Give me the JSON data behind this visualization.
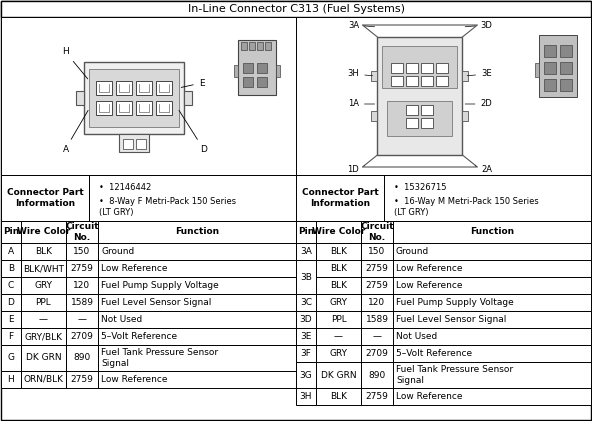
{
  "title": "In-Line Connector C313 (Fuel Systems)",
  "bg_color": "#ffffff",
  "connector_info_left": {
    "label": "Connector Part\nInformation",
    "details": [
      "12146442",
      "8-Way F Metri-Pack 150 Series\n(LT GRY)"
    ]
  },
  "connector_info_right": {
    "label": "Connector Part\nInformation",
    "details": [
      "15326715",
      "16-Way M Metri-Pack 150 Series\n(LT GRY)"
    ]
  },
  "left_table_headers": [
    "Pin",
    "Wire Color",
    "Circuit\nNo.",
    "Function"
  ],
  "right_table_headers": [
    "Pin",
    "Wire Color",
    "Circuit\nNo.",
    "Function"
  ],
  "left_rows": [
    [
      "A",
      "BLK",
      "150",
      "Ground"
    ],
    [
      "B",
      "BLK/WHT",
      "2759",
      "Low Reference"
    ],
    [
      "C",
      "GRY",
      "120",
      "Fuel Pump Supply Voltage"
    ],
    [
      "D",
      "PPL",
      "1589",
      "Fuel Level Sensor Signal"
    ],
    [
      "E",
      "—",
      "—",
      "Not Used"
    ],
    [
      "F",
      "GRY/BLK",
      "2709",
      "5–Volt Reference"
    ],
    [
      "G",
      "DK GRN",
      "890",
      "Fuel Tank Pressure Sensor\nSignal"
    ],
    [
      "H",
      "ORN/BLK",
      "2759",
      "Low Reference"
    ]
  ],
  "right_rows_3b": [
    "BLK",
    "2759",
    "Low Reference"
  ],
  "right_rows": [
    [
      "3A",
      "BLK",
      "150",
      "Ground"
    ],
    [
      "3B",
      "BLK",
      "2759",
      "Low Reference",
      "BLK",
      "2759",
      "Low Reference"
    ],
    [
      "3C",
      "GRY",
      "120",
      "Fuel Pump Supply Voltage"
    ],
    [
      "3D",
      "PPL",
      "1589",
      "Fuel Level Sensor Signal"
    ],
    [
      "3E",
      "—",
      "—",
      "Not Used"
    ],
    [
      "3F",
      "GRY",
      "2709",
      "5–Volt Reference"
    ],
    [
      "3G",
      "DK GRN",
      "890",
      "Fuel Tank Pressure Sensor\nSignal"
    ],
    [
      "3H",
      "BLK",
      "2759",
      "Low Reference"
    ]
  ],
  "figsize": [
    5.92,
    4.21
  ],
  "dpi": 100
}
